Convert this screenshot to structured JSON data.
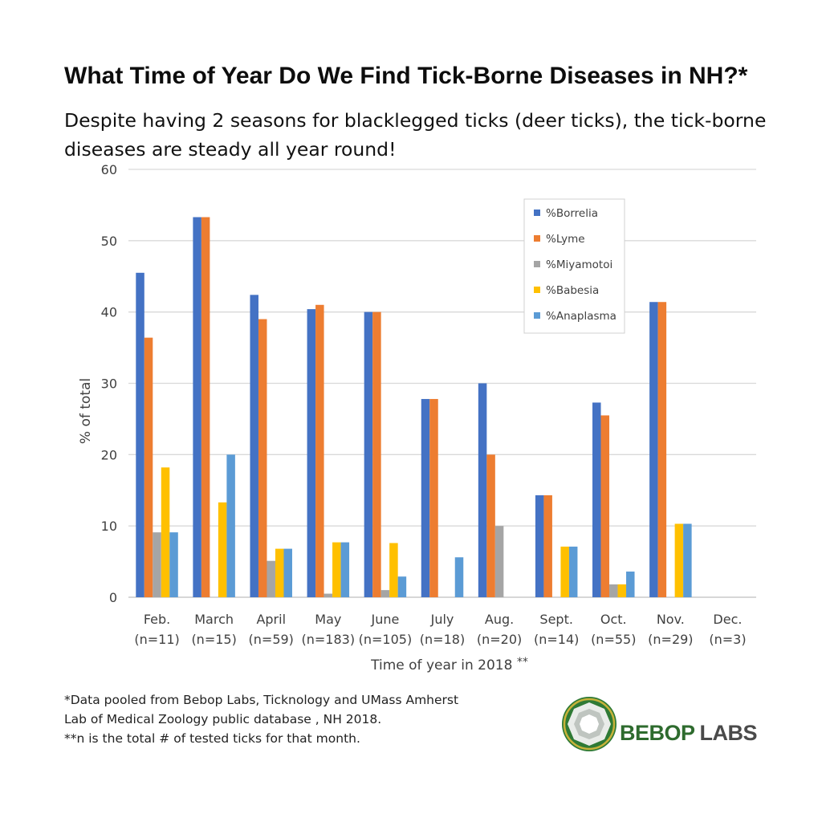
{
  "title": "What Time of Year Do We Find Tick-Borne Diseases in NH?*",
  "subtitle": "Despite having 2 seasons for blacklegged ticks (deer ticks), the tick-borne diseases are steady all year round!",
  "footnotes": [
    "*Data pooled from Bebop Labs, Ticknology and UMass Amherst",
    "Lab of Medical Zoology public database , NH 2018.",
    "**n is the total # of tested ticks for that month."
  ],
  "logo": {
    "brand": "BEBOP",
    "suffix": "LABS",
    "icon": "bebop-labs-logo-icon"
  },
  "chart_data": {
    "type": "bar",
    "categories": [
      "Feb.",
      "March",
      "April",
      "May",
      "June",
      "July",
      "Aug.",
      "Sept.",
      "Oct.",
      "Nov.",
      "Dec."
    ],
    "category_sublabels": [
      "(n=11)",
      "(n=15)",
      "(n=59)",
      "(n=183)",
      "(n=105)",
      "(n=18)",
      "(n=20)",
      "(n=14)",
      "(n=55)",
      "(n=29)",
      "(n=3)"
    ],
    "series": [
      {
        "name": "%Borrelia",
        "color": "#4472c4",
        "values": [
          45.5,
          53.3,
          42.4,
          40.4,
          40.0,
          27.8,
          30.0,
          14.3,
          27.3,
          41.4,
          0
        ]
      },
      {
        "name": "%Lyme",
        "color": "#ed7d31",
        "values": [
          36.4,
          53.3,
          39.0,
          41.0,
          40.0,
          27.8,
          20.0,
          14.3,
          25.5,
          41.4,
          0
        ]
      },
      {
        "name": "%Miyamotoi",
        "color": "#a5a5a5",
        "values": [
          9.1,
          0,
          5.1,
          0.5,
          1.0,
          0,
          10.0,
          0,
          1.8,
          0,
          0
        ]
      },
      {
        "name": "%Babesia",
        "color": "#ffc000",
        "values": [
          18.2,
          13.3,
          6.8,
          7.7,
          7.6,
          0,
          0,
          7.1,
          1.8,
          10.3,
          0
        ]
      },
      {
        "name": "%Anaplasma",
        "color": "#5b9bd5",
        "values": [
          9.1,
          20.0,
          6.8,
          7.7,
          2.9,
          5.6,
          0,
          7.1,
          3.6,
          10.3,
          0
        ]
      }
    ],
    "xlabel": "Time of year in 2018",
    "xlabel_suffix": "**",
    "ylabel": "% of total",
    "ylim": [
      0,
      60
    ],
    "yticks": [
      0,
      10,
      20,
      30,
      40,
      50,
      60
    ],
    "grid": true,
    "legend_position": "top-right"
  }
}
